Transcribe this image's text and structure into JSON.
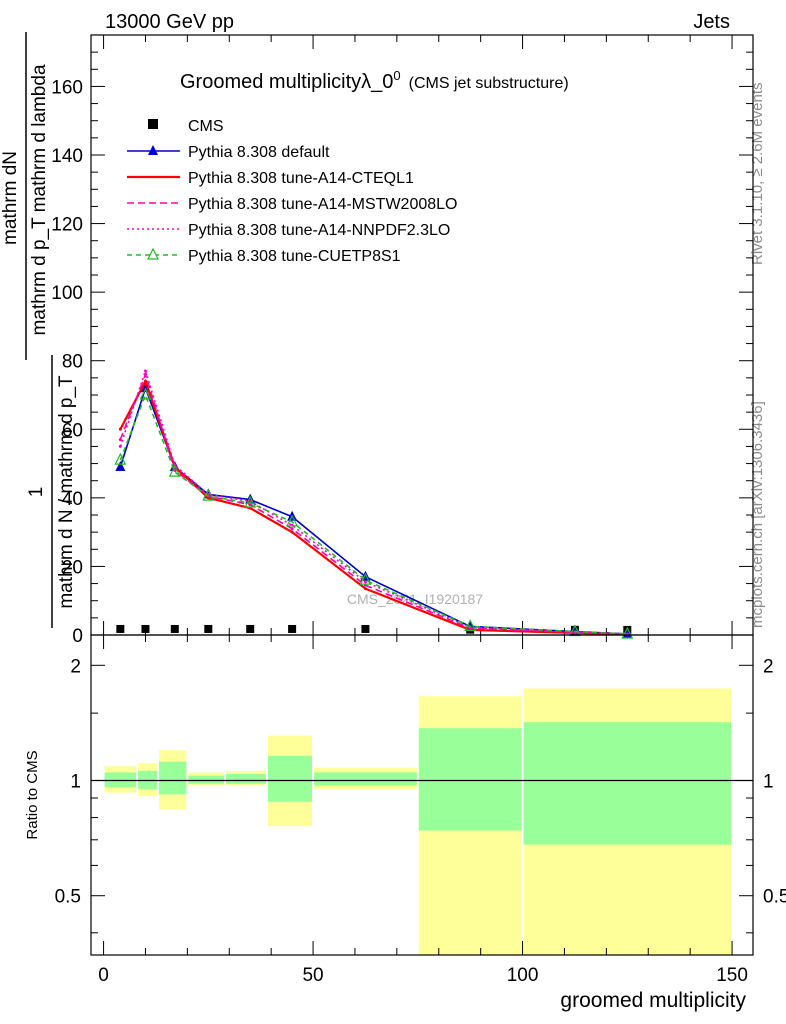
{
  "header": {
    "left": "13000 GeV pp",
    "right": "Jets"
  },
  "side_labels": {
    "top": "Rivet 3.1.10, ≥ 2.6M events",
    "bottom": "mcplots.cern.ch [arXiv:1306.3436]"
  },
  "watermark": "CMS_2021_I1920187",
  "colors": {
    "cms": "#000000",
    "default": "#0000cc",
    "cteql1": "#ff0000",
    "mstw": "#ff00aa",
    "nnpdf": "#ff00cc",
    "cuetp": "#22bb22",
    "band_outer": "#ffff99",
    "band_inner": "#99ff99"
  },
  "chart_data": [
    {
      "type": "line",
      "title_main": "Groomed multiplicityλ_0",
      "title_sup": "0",
      "title_sub": "(CMS jet substructure)",
      "ylabel_num": "mathrm dN",
      "ylabel_den": "mathrm d p_T mathrm d lambda",
      "ylabel_pre": "1",
      "ylabel_pre_den": "mathrm d N / mathrm d p_T",
      "xlim": [
        -3,
        155
      ],
      "ylim": [
        0,
        175
      ],
      "yticks": [
        0,
        20,
        40,
        60,
        80,
        100,
        120,
        140,
        160
      ],
      "legend_position": "top-left",
      "x": [
        4,
        10,
        17,
        25,
        35,
        45,
        62.5,
        87.5,
        112.5,
        125
      ],
      "series": [
        {
          "name": "CMS",
          "key": "cms",
          "marker": "square",
          "dash": "none",
          "values": [
            0.3,
            0.3,
            0.3,
            0.3,
            0.3,
            0.3,
            0.3,
            0.1,
            0.05,
            0.02
          ]
        },
        {
          "name": "Pythia 8.308 default",
          "key": "default",
          "marker": "triangle",
          "dash": "none",
          "values": [
            49,
            72,
            49,
            41,
            39.5,
            34.5,
            17,
            2.5,
            1,
            0.3
          ]
        },
        {
          "name": "Pythia 8.308 tune-A14-CTEQL1",
          "key": "cteql1",
          "marker": "none",
          "dash": "none",
          "values": [
            60,
            74,
            49,
            40,
            37,
            30,
            13.5,
            1.5,
            0.6,
            0.2
          ]
        },
        {
          "name": "Pythia 8.308 tune-A14-MSTW2008LO",
          "key": "mstw",
          "marker": "none",
          "dash": "7,4",
          "values": [
            57,
            76,
            48,
            40.5,
            38,
            31,
            14.5,
            2,
            0.8,
            0.3
          ]
        },
        {
          "name": "Pythia 8.308 tune-A14-NNPDF2.3LO",
          "key": "nnpdf",
          "marker": "none",
          "dash": "2,3",
          "values": [
            55,
            77,
            49.5,
            41,
            39,
            32,
            15.5,
            2.2,
            0.9,
            0.3
          ]
        },
        {
          "name": "Pythia 8.308 tune-CUETP8S1",
          "key": "cuetp",
          "marker": "open-triangle",
          "dash": "5,4",
          "values": [
            51,
            70,
            47.5,
            40.5,
            38.5,
            33,
            16,
            2.5,
            1,
            0.3
          ]
        }
      ]
    },
    {
      "type": "area",
      "ylabel": "Ratio to CMS",
      "xlabel": "groomed multiplicity",
      "xlim": [
        -3,
        155
      ],
      "ylim": [
        0.35,
        2.4
      ],
      "log_y": true,
      "yticks": [
        0.5,
        1,
        2
      ],
      "xticks": [
        0,
        50,
        100,
        150
      ],
      "reference_line": 1,
      "bins": [
        {
          "x0": 0,
          "x1": 8,
          "inner": [
            0.96,
            1.05
          ],
          "outer": [
            0.93,
            1.09
          ]
        },
        {
          "x0": 8,
          "x1": 13,
          "inner": [
            0.95,
            1.06
          ],
          "outer": [
            0.91,
            1.11
          ]
        },
        {
          "x0": 13,
          "x1": 20,
          "inner": [
            0.92,
            1.12
          ],
          "outer": [
            0.84,
            1.2
          ]
        },
        {
          "x0": 20,
          "x1": 29,
          "inner": [
            0.98,
            1.03
          ],
          "outer": [
            0.97,
            1.05
          ]
        },
        {
          "x0": 29,
          "x1": 39,
          "inner": [
            0.98,
            1.04
          ],
          "outer": [
            0.97,
            1.06
          ]
        },
        {
          "x0": 39,
          "x1": 50,
          "inner": [
            0.88,
            1.16
          ],
          "outer": [
            0.76,
            1.31
          ]
        },
        {
          "x0": 50,
          "x1": 75,
          "inner": [
            0.97,
            1.05
          ],
          "outer": [
            0.95,
            1.08
          ]
        },
        {
          "x0": 75,
          "x1": 100,
          "inner": [
            0.74,
            1.37
          ],
          "outer": [
            0.35,
            1.66
          ]
        },
        {
          "x0": 100,
          "x1": 150,
          "inner": [
            0.68,
            1.42
          ],
          "outer": [
            0.35,
            1.74
          ]
        }
      ]
    }
  ]
}
